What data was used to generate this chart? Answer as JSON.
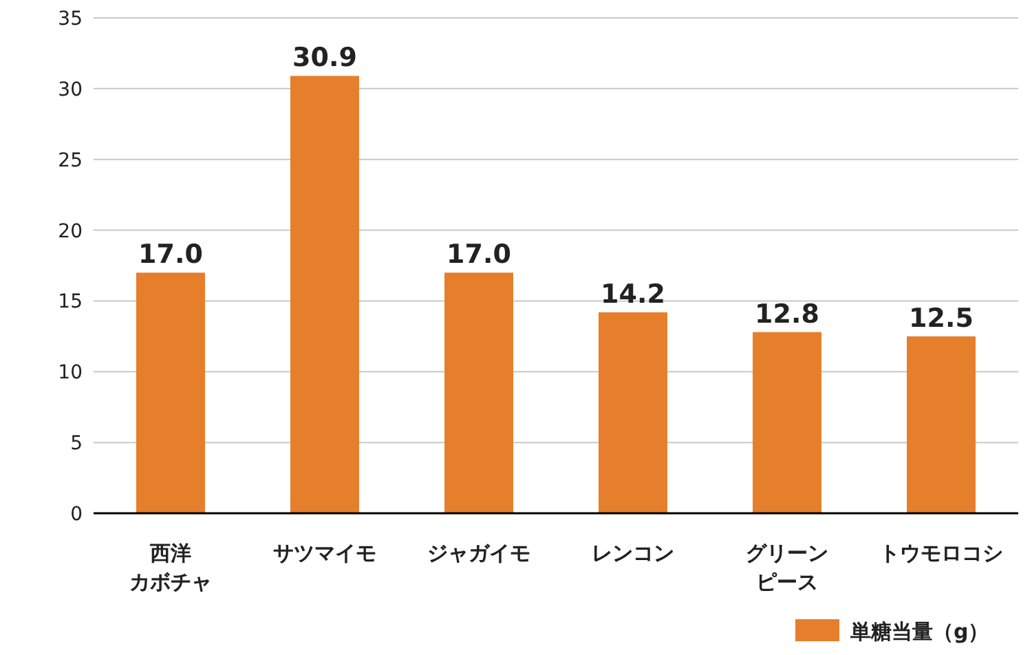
{
  "chart_data": {
    "type": "bar",
    "categories": [
      "西洋カボチャ",
      "サツマイモ",
      "ジャガイモ",
      "レンコン",
      "グリーンピース",
      "トウモロコシ"
    ],
    "series": [
      {
        "name": "単糖当量（g）",
        "color": "#e67f2c",
        "values": [
          17.0,
          30.9,
          17.0,
          14.2,
          12.8,
          12.5
        ]
      }
    ],
    "value_labels": [
      "17.0",
      "30.9",
      "17.0",
      "14.2",
      "12.8",
      "12.5"
    ],
    "ylim": [
      0,
      35
    ],
    "yticks": [
      0,
      5,
      10,
      15,
      20,
      25,
      30,
      35
    ],
    "grid": "y",
    "legend": "bottom right"
  }
}
